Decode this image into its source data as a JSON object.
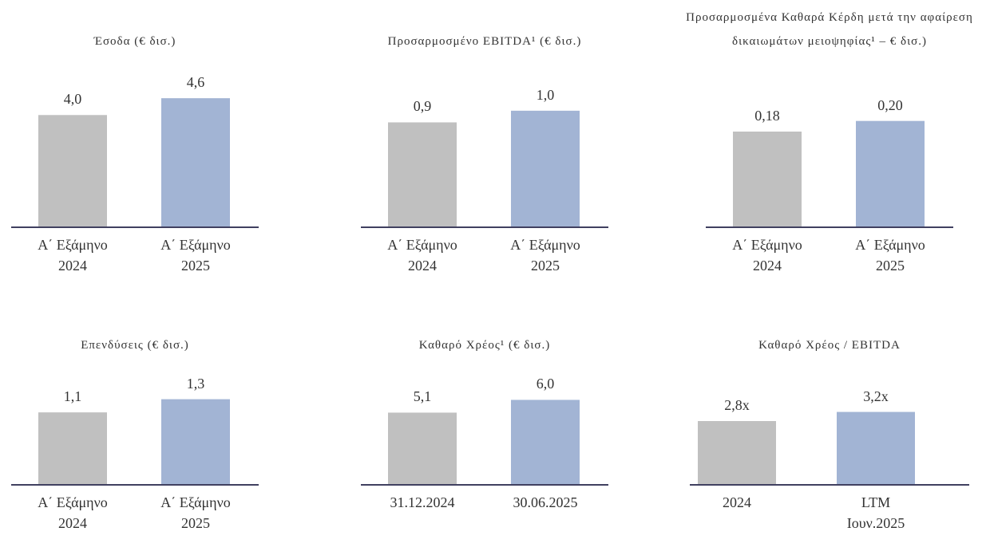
{
  "chart_data": [
    {
      "type": "bar",
      "title": "Έσοδα (€ δισ.)",
      "categories": [
        "Α΄ Εξάμηνο\n2024",
        "Α΄ Εξάμηνο\n2025"
      ],
      "values": [
        4.0,
        4.6
      ],
      "value_labels": [
        "4,0",
        "4,6"
      ],
      "colors": [
        "#c0c0c0",
        "#a2b4d4"
      ],
      "ylim": [
        0,
        5.4
      ]
    },
    {
      "type": "bar",
      "title": "Προσαρμοσμένο EBITDA¹ (€ δισ.)",
      "categories": [
        "Α΄ Εξάμηνο\n2024",
        "Α΄ Εξάμηνο\n2025"
      ],
      "values": [
        0.9,
        1.0
      ],
      "value_labels": [
        "0,9",
        "1,0"
      ],
      "colors": [
        "#c0c0c0",
        "#a2b4d4"
      ],
      "ylim": [
        0,
        1.3
      ]
    },
    {
      "type": "bar",
      "title": "Προσαρμοσμένα Καθαρά Κέρδη μετά την αφαίρεση δικαιωμάτων μειοψηφίας¹ – € δισ.)",
      "categories": [
        "Α΄ Εξάμηνο\n2024",
        "Α΄ Εξάμηνο\n2025"
      ],
      "values": [
        0.18,
        0.2
      ],
      "value_labels": [
        "0,18",
        "0,20"
      ],
      "colors": [
        "#c0c0c0",
        "#a2b4d4"
      ],
      "ylim": [
        0,
        0.285
      ]
    },
    {
      "type": "bar",
      "title": "Επενδύσεις (€ δισ.)",
      "categories": [
        "Α΄ Εξάμηνο\n2024",
        "Α΄ Εξάμηνο\n2025"
      ],
      "values": [
        1.1,
        1.3
      ],
      "value_labels": [
        "1,1",
        "1,3"
      ],
      "colors": [
        "#c0c0c0",
        "#a2b4d4"
      ],
      "ylim": [
        0,
        2.3
      ]
    },
    {
      "type": "bar",
      "title": "Καθαρό Χρέος¹ (€ δισ.)",
      "categories": [
        "31.12.2024",
        "30.06.2025"
      ],
      "values": [
        5.1,
        6.0
      ],
      "value_labels": [
        "5,1",
        "6,0"
      ],
      "colors": [
        "#c0c0c0",
        "#a2b4d4"
      ],
      "ylim": [
        0,
        10.7
      ]
    },
    {
      "type": "bar",
      "title": "Καθαρό Χρέος / EBITDA",
      "categories": [
        "2024",
        "LTM\nΙουν.2025"
      ],
      "values": [
        2.8,
        3.2
      ],
      "value_labels": [
        "2,8x",
        "3,2x"
      ],
      "colors": [
        "#c0c0c0",
        "#a2b4d4"
      ],
      "ylim": [
        0,
        6.65
      ]
    }
  ]
}
